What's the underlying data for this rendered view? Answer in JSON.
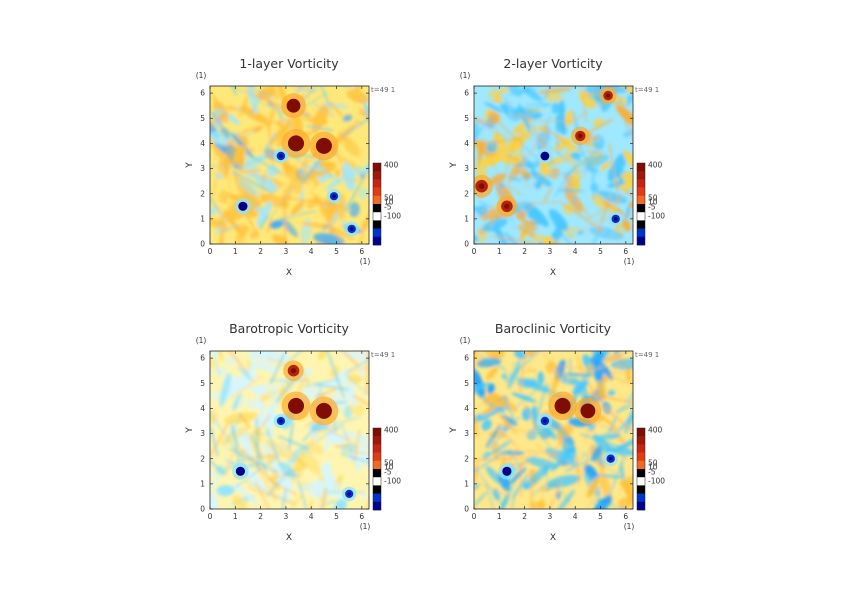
{
  "figure": {
    "colorscale": [
      "#00008b",
      "#0033cc",
      "#0066ff",
      "#1fa3ff",
      "#47c8ff",
      "#8fe4ff",
      "#d6f6ff",
      "#fffcd0",
      "#fff07a",
      "#ffd23f",
      "#ffab2b",
      "#f47a1f",
      "#db4411",
      "#b4220a",
      "#7f0d03"
    ],
    "bar_levels": [
      "#7f0d03",
      "#a0180a",
      "#c82412",
      "#e23c12",
      "#f26a20",
      "#000000",
      "#ffffff",
      "#000000",
      "#0033cc",
      "#00008b"
    ]
  },
  "chart_data": [
    {
      "type": "heatmap",
      "title": "1-layer Vorticity",
      "xlabel": "X",
      "ylabel": "Y",
      "x_ticks": [
        "0",
        "1",
        "2",
        "3",
        "4",
        "5",
        "6"
      ],
      "y_ticks": [
        "0",
        "1",
        "2",
        "3",
        "4",
        "5",
        "6"
      ],
      "xlim": [
        0,
        6.283
      ],
      "ylim": [
        0,
        6.283
      ],
      "x_unit": "(1)",
      "y_unit": "(1)",
      "time_label": "t=49 1",
      "colorbar_labels": [
        "400",
        "50",
        "10",
        "-5",
        "-100"
      ],
      "colorbar_values": [
        400,
        50,
        10,
        -5,
        -100
      ],
      "background": "warm-positive",
      "vortices": [
        {
          "x": 3.4,
          "y": 4.0,
          "value": 400
        },
        {
          "x": 4.5,
          "y": 3.9,
          "value": 400
        },
        {
          "x": 3.3,
          "y": 5.5,
          "value": 300
        },
        {
          "x": 1.3,
          "y": 1.5,
          "value": -100
        },
        {
          "x": 2.8,
          "y": 3.5,
          "value": -60
        },
        {
          "x": 5.6,
          "y": 0.6,
          "value": -60
        },
        {
          "x": 4.9,
          "y": 1.9,
          "value": -50
        }
      ]
    },
    {
      "type": "heatmap",
      "title": "2-layer Vorticity",
      "xlabel": "X",
      "ylabel": "Y",
      "x_ticks": [
        "0",
        "1",
        "2",
        "3",
        "4",
        "5",
        "6"
      ],
      "y_ticks": [
        "0",
        "1",
        "2",
        "3",
        "4",
        "5",
        "6"
      ],
      "xlim": [
        0,
        6.283
      ],
      "ylim": [
        0,
        6.283
      ],
      "x_unit": "(1)",
      "y_unit": "(1)",
      "time_label": "t=49 1",
      "colorbar_labels": [
        "400",
        "50",
        "10",
        "-5",
        "-100"
      ],
      "colorbar_values": [
        400,
        50,
        10,
        -5,
        -100
      ],
      "background": "cool-negative",
      "vortices": [
        {
          "x": 2.8,
          "y": 3.5,
          "value": -80
        },
        {
          "x": 1.3,
          "y": 1.5,
          "value": 200
        },
        {
          "x": 0.3,
          "y": 2.3,
          "value": 250
        },
        {
          "x": 4.2,
          "y": 4.3,
          "value": 150
        },
        {
          "x": 5.3,
          "y": 5.9,
          "value": 120
        },
        {
          "x": 5.6,
          "y": 1.0,
          "value": -60
        }
      ]
    },
    {
      "type": "heatmap",
      "title": "Barotropic Vorticity",
      "xlabel": "X",
      "ylabel": "Y",
      "x_ticks": [
        "0",
        "1",
        "2",
        "3",
        "4",
        "5",
        "6"
      ],
      "y_ticks": [
        "0",
        "1",
        "2",
        "3",
        "4",
        "5",
        "6"
      ],
      "xlim": [
        0,
        6.283
      ],
      "ylim": [
        0,
        6.283
      ],
      "x_unit": "(1)",
      "y_unit": "(1)",
      "time_label": "t=49 1",
      "colorbar_labels": [
        "400",
        "50",
        "10",
        "-5",
        "-100"
      ],
      "colorbar_values": [
        400,
        50,
        10,
        -5,
        -100
      ],
      "background": "pale-mixed",
      "vortices": [
        {
          "x": 3.4,
          "y": 4.1,
          "value": 400
        },
        {
          "x": 4.5,
          "y": 3.9,
          "value": 400
        },
        {
          "x": 3.3,
          "y": 5.5,
          "value": 200
        },
        {
          "x": 1.2,
          "y": 1.5,
          "value": -100
        },
        {
          "x": 2.8,
          "y": 3.5,
          "value": -50
        },
        {
          "x": 5.5,
          "y": 0.6,
          "value": -50
        }
      ]
    },
    {
      "type": "heatmap",
      "title": "Baroclinic Vorticity",
      "xlabel": "X",
      "ylabel": "Y",
      "x_ticks": [
        "0",
        "1",
        "2",
        "3",
        "4",
        "5",
        "6"
      ],
      "y_ticks": [
        "0",
        "1",
        "2",
        "3",
        "4",
        "5",
        "6"
      ],
      "xlim": [
        0,
        6.283
      ],
      "ylim": [
        0,
        6.283
      ],
      "x_unit": "(1)",
      "y_unit": "(1)",
      "time_label": "t=49 1",
      "colorbar_labels": [
        "400",
        "50",
        "10",
        "-5",
        "-100"
      ],
      "colorbar_values": [
        400,
        50,
        10,
        -5,
        -100
      ],
      "background": "mixed-diagonal",
      "vortices": [
        {
          "x": 3.5,
          "y": 4.1,
          "value": 400
        },
        {
          "x": 4.5,
          "y": 3.9,
          "value": 350
        },
        {
          "x": 1.3,
          "y": 1.5,
          "value": -100
        },
        {
          "x": 2.8,
          "y": 3.5,
          "value": -60
        },
        {
          "x": 5.4,
          "y": 2.0,
          "value": -60
        }
      ]
    }
  ]
}
